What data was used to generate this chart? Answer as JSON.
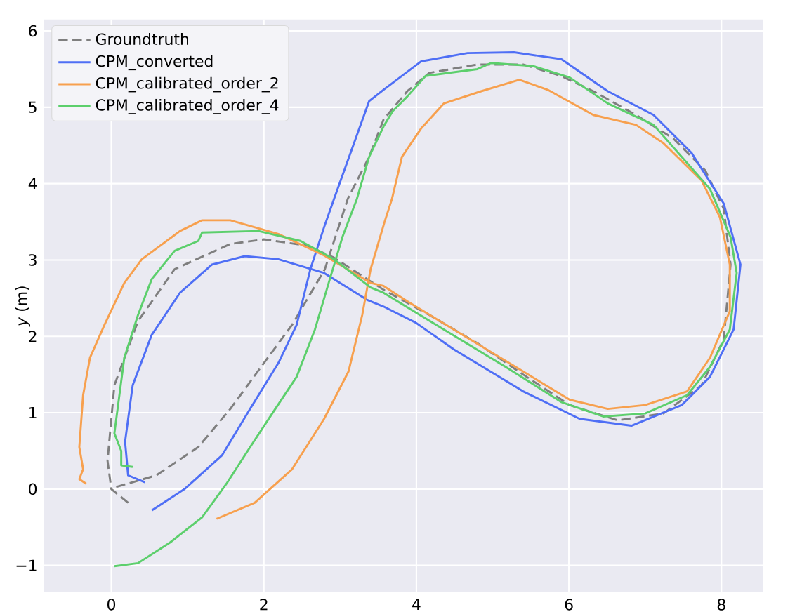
{
  "chart_data": {
    "type": "line",
    "ylabel": "*y* (m)",
    "xlim": [
      -0.88,
      8.55
    ],
    "ylim": [
      -1.35,
      6.15
    ],
    "xticks": [
      0,
      2,
      4,
      6,
      8
    ],
    "yticks": [
      {
        "value": -1,
        "label": "−1"
      },
      0,
      1,
      2,
      3,
      4,
      5,
      6
    ],
    "grid": true,
    "legend": "top left",
    "series": [
      {
        "name": "Groundtruth",
        "color": "#7f7f7f",
        "line_style": "dashed",
        "x": [
          0.22,
          0.0,
          -0.05,
          0.04,
          0.35,
          0.83,
          1.56,
          2.0,
          2.56,
          2.92,
          3.57,
          4.17,
          4.8,
          5.4,
          6.01,
          6.64,
          7.24,
          7.74,
          8.03,
          8.12,
          8.03,
          7.79,
          7.37,
          6.88,
          6.32,
          5.9,
          5.4,
          4.8,
          4.17,
          3.88,
          3.57,
          3.38,
          3.1,
          2.8,
          2.37,
          2.0,
          1.56,
          1.14,
          0.59,
          0.04
        ],
        "values": [
          -0.18,
          0.0,
          0.37,
          1.36,
          2.2,
          2.88,
          3.21,
          3.27,
          3.19,
          3.03,
          2.61,
          2.28,
          1.91,
          1.5,
          1.1,
          0.9,
          0.99,
          1.36,
          1.96,
          2.94,
          3.67,
          4.17,
          4.59,
          4.9,
          5.21,
          5.41,
          5.56,
          5.56,
          5.45,
          5.21,
          4.84,
          4.35,
          3.8,
          2.88,
          2.15,
          1.65,
          1.05,
          0.55,
          0.18,
          0.02
        ]
      },
      {
        "name": "CPM_converted",
        "color": "#4f6ff5",
        "line_style": "solid",
        "x": [
          0.53,
          0.96,
          1.45,
          1.82,
          2.19,
          2.43,
          2.61,
          2.79,
          2.92,
          3.38,
          3.57,
          4.06,
          4.67,
          5.28,
          5.9,
          6.51,
          7.11,
          7.61,
          8.03,
          8.25,
          8.16,
          7.85,
          7.48,
          6.82,
          6.14,
          5.4,
          4.49,
          3.99,
          3.57,
          3.35,
          2.79,
          2.19,
          1.75,
          1.32,
          0.9,
          0.53,
          0.28,
          0.18,
          0.22,
          0.44
        ],
        "values": [
          -0.28,
          0.0,
          0.44,
          1.05,
          1.65,
          2.15,
          2.88,
          3.43,
          3.8,
          5.08,
          5.23,
          5.6,
          5.71,
          5.72,
          5.63,
          5.21,
          4.9,
          4.4,
          3.74,
          2.94,
          2.09,
          1.47,
          1.1,
          0.83,
          0.92,
          1.28,
          1.83,
          2.18,
          2.39,
          2.48,
          2.83,
          3.01,
          3.05,
          2.94,
          2.57,
          2.02,
          1.36,
          0.62,
          0.18,
          0.09
        ]
      },
      {
        "name": "CPM_calibrated_order_2",
        "color": "#f7a04e",
        "line_style": "solid",
        "x": [
          1.38,
          1.88,
          2.37,
          2.79,
          3.11,
          3.29,
          3.4,
          3.58,
          3.68,
          3.81,
          4.06,
          4.36,
          4.85,
          5.35,
          5.72,
          6.32,
          6.88,
          7.24,
          7.74,
          7.98,
          8.11,
          8.11,
          7.85,
          7.55,
          7.0,
          6.51,
          6.01,
          5.4,
          4.49,
          3.88,
          3.57,
          3.4,
          2.79,
          2.19,
          1.56,
          1.19,
          0.9,
          0.4,
          0.17,
          -0.09,
          -0.28,
          -0.37,
          -0.42,
          -0.37,
          -0.42,
          -0.33
        ],
        "values": [
          -0.39,
          -0.18,
          0.26,
          0.92,
          1.54,
          2.28,
          2.88,
          3.49,
          3.8,
          4.35,
          4.72,
          5.05,
          5.21,
          5.36,
          5.23,
          4.9,
          4.77,
          4.53,
          4.04,
          3.56,
          2.94,
          2.33,
          1.72,
          1.28,
          1.1,
          1.05,
          1.17,
          1.54,
          2.09,
          2.46,
          2.66,
          2.7,
          3.06,
          3.34,
          3.52,
          3.52,
          3.38,
          3.01,
          2.7,
          2.15,
          1.72,
          1.23,
          0.55,
          0.26,
          0.13,
          0.07
        ]
      },
      {
        "name": "CPM_calibrated_order_4",
        "color": "#5ccf6c",
        "line_style": "solid",
        "x": [
          0.04,
          0.35,
          0.77,
          1.19,
          1.51,
          1.82,
          2.11,
          2.43,
          2.67,
          2.85,
          3.03,
          3.22,
          3.38,
          3.57,
          3.69,
          3.88,
          4.12,
          4.8,
          4.98,
          5.53,
          6.01,
          6.51,
          7.11,
          7.48,
          7.85,
          8.12,
          8.2,
          8.11,
          7.85,
          7.55,
          7.0,
          6.45,
          5.9,
          5.17,
          4.36,
          3.57,
          3.4,
          2.92,
          2.48,
          1.93,
          1.19,
          1.14,
          0.83,
          0.53,
          0.35,
          0.17,
          0.04,
          0.13,
          0.13,
          0.28
        ],
        "values": [
          -1.01,
          -0.97,
          -0.7,
          -0.37,
          0.07,
          0.55,
          0.99,
          1.47,
          2.09,
          2.7,
          3.3,
          3.8,
          4.35,
          4.75,
          4.95,
          5.14,
          5.41,
          5.5,
          5.58,
          5.54,
          5.39,
          5.05,
          4.77,
          4.35,
          3.93,
          3.3,
          2.83,
          2.09,
          1.6,
          1.23,
          0.99,
          0.95,
          1.14,
          1.6,
          2.09,
          2.57,
          2.64,
          3.01,
          3.25,
          3.38,
          3.36,
          3.25,
          3.12,
          2.75,
          2.28,
          1.72,
          0.73,
          0.5,
          0.31,
          0.29
        ]
      }
    ]
  }
}
